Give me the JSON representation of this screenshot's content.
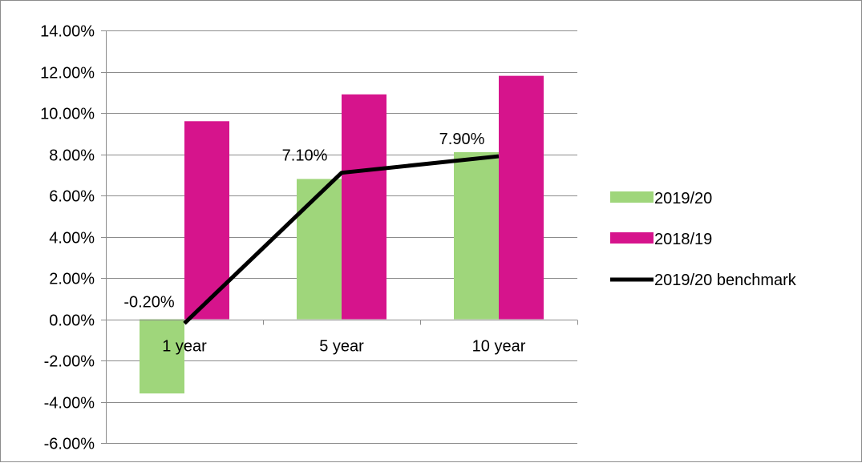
{
  "chart_data": {
    "type": "bar",
    "categories": [
      "1 year",
      "5 year",
      "10 year"
    ],
    "series": [
      {
        "name": "2019/20",
        "kind": "bar",
        "values": [
          -3.6,
          6.8,
          8.1
        ],
        "color": "#9fd67b"
      },
      {
        "name": "2018/19",
        "kind": "bar",
        "values": [
          9.6,
          10.9,
          11.8
        ],
        "color": "#d6148c"
      },
      {
        "name": "2019/20 benchmark",
        "kind": "line",
        "values": [
          -0.2,
          7.1,
          7.9
        ],
        "color": "#000000",
        "data_labels": [
          "-0.20%",
          "7.10%",
          "7.90%"
        ]
      }
    ],
    "ylim": [
      -6,
      14
    ],
    "yticks": [
      -6,
      -4,
      -2,
      0,
      2,
      4,
      6,
      8,
      10,
      12,
      14
    ],
    "ytick_labels": [
      "-6.00%",
      "-4.00%",
      "-2.00%",
      "0.00%",
      "2.00%",
      "4.00%",
      "6.00%",
      "8.00%",
      "10.00%",
      "12.00%",
      "14.00%"
    ],
    "title": "",
    "xlabel": "",
    "ylabel": "",
    "grid": "horizontal",
    "legend": "right"
  }
}
